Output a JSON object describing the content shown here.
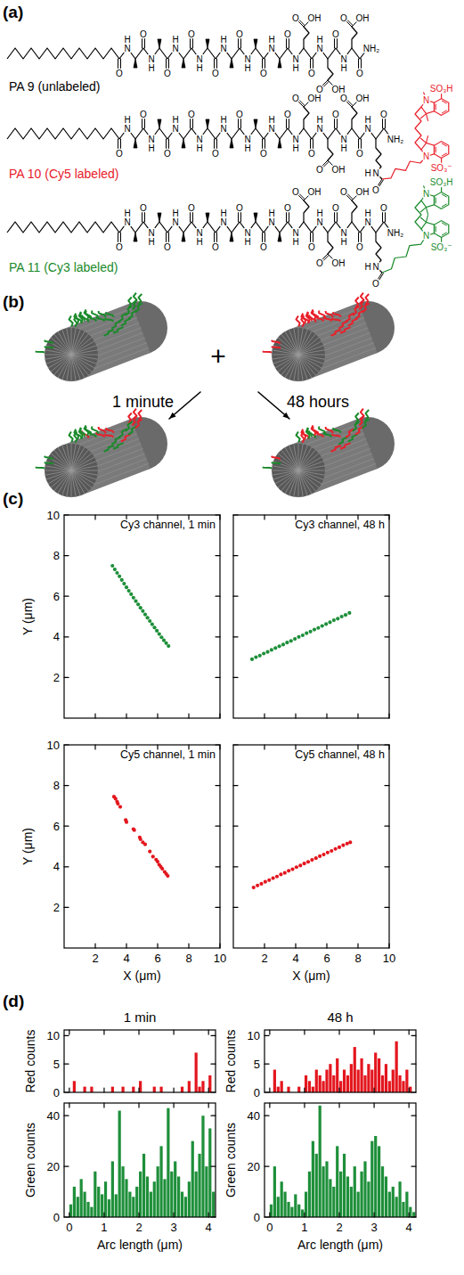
{
  "figure": {
    "panel_letters": [
      "(a)",
      "(b)",
      "(c)",
      "(d)"
    ],
    "atoms": {
      "O": "O",
      "N": "N",
      "H": "H",
      "OH": "OH",
      "NH2": "NH₂",
      "SO3H": "SO₃H",
      "SO3": "SO₃⁻"
    },
    "structures": [
      {
        "label": "PA 9 (unlabeled)",
        "color": "#000000",
        "dye": false
      },
      {
        "label": "PA 10 (Cy5 labeled)",
        "color": "#e8202a",
        "dye": true,
        "polymethine": 5
      },
      {
        "label": "PA 11 (Cy3 labeled)",
        "color": "#1a8a2a",
        "dye": true,
        "polymethine": 3
      }
    ],
    "assembly": {
      "plus": "+",
      "left_arrow": "1 minute",
      "right_arrow": "48 hours"
    }
  },
  "chart_data": [
    {
      "type": "scatter",
      "title": "Cy3 channel, 1 min",
      "ylabel": "Y (μm)",
      "color": "#1e8f3a",
      "x": [
        3.1,
        3.25,
        3.4,
        3.55,
        3.7,
        3.85,
        4.0,
        4.15,
        4.3,
        4.45,
        4.6,
        4.75,
        4.9,
        5.05,
        5.2,
        5.35,
        5.5,
        5.65,
        5.8,
        5.95,
        6.1,
        6.25,
        6.4,
        6.55,
        6.7
      ],
      "values": [
        7.5,
        7.32,
        7.15,
        6.98,
        6.8,
        6.62,
        6.44,
        6.27,
        6.1,
        5.93,
        5.76,
        5.6,
        5.43,
        5.27,
        5.1,
        4.94,
        4.78,
        4.62,
        4.46,
        4.3,
        4.14,
        3.98,
        3.83,
        3.69,
        3.55
      ],
      "xlim": [
        0,
        10
      ],
      "ylim": [
        0,
        10
      ],
      "xticks": [
        2,
        4,
        6,
        8,
        10
      ],
      "yticks": [
        2,
        4,
        6,
        8,
        10
      ],
      "tick_labels": "y"
    },
    {
      "type": "scatter",
      "title": "Cy3 channel, 48 h",
      "color": "#1e8f3a",
      "x": [
        1.2,
        1.45,
        1.7,
        1.95,
        2.2,
        2.45,
        2.7,
        2.95,
        3.2,
        3.45,
        3.7,
        3.95,
        4.2,
        4.45,
        4.7,
        4.95,
        5.2,
        5.45,
        5.7,
        5.95,
        6.2,
        6.45,
        6.7,
        6.95,
        7.2,
        7.45
      ],
      "values": [
        2.9,
        3.0,
        3.08,
        3.18,
        3.26,
        3.36,
        3.45,
        3.54,
        3.62,
        3.72,
        3.8,
        3.9,
        4.0,
        4.08,
        4.18,
        4.26,
        4.36,
        4.44,
        4.54,
        4.63,
        4.72,
        4.82,
        4.9,
        5.0,
        5.08,
        5.18
      ],
      "xlim": [
        0,
        10
      ],
      "ylim": [
        0,
        10
      ],
      "xticks": [
        2,
        4,
        6,
        8,
        10
      ],
      "yticks": [
        2,
        4,
        6,
        8,
        10
      ],
      "tick_labels": false
    },
    {
      "type": "scatter",
      "title": "Cy5 channel, 1 min",
      "ylabel": "Y (μm)",
      "xlabel": "X (μm)",
      "color": "#e3161e",
      "x": [
        3.2,
        3.3,
        3.4,
        3.45,
        3.6,
        3.95,
        4.0,
        4.45,
        4.5,
        4.85,
        4.9,
        5.05,
        5.2,
        5.5,
        5.7,
        5.9,
        6.0,
        6.1,
        6.2,
        6.3,
        6.45,
        6.55,
        6.65
      ],
      "values": [
        7.45,
        7.35,
        7.2,
        7.1,
        6.95,
        6.3,
        6.2,
        5.85,
        5.8,
        5.45,
        5.35,
        5.2,
        5.1,
        4.75,
        4.5,
        4.35,
        4.25,
        4.1,
        4.0,
        3.9,
        3.75,
        3.65,
        3.55
      ],
      "xlim": [
        0,
        10
      ],
      "ylim": [
        0,
        10
      ],
      "xticks": [
        2,
        4,
        6,
        8,
        10
      ],
      "yticks": [
        2,
        4,
        6,
        8,
        10
      ],
      "tick_labels": true
    },
    {
      "type": "scatter",
      "title": "Cy5 channel, 48 h",
      "xlabel": "X (μm)",
      "color": "#e3161e",
      "x": [
        1.3,
        1.55,
        1.8,
        2.05,
        2.3,
        2.55,
        2.8,
        3.05,
        3.3,
        3.55,
        3.8,
        4.05,
        4.3,
        4.55,
        4.8,
        5.05,
        5.3,
        5.55,
        5.8,
        6.05,
        6.3,
        6.55,
        6.8,
        7.05,
        7.3,
        7.5
      ],
      "values": [
        2.98,
        3.08,
        3.16,
        3.26,
        3.34,
        3.44,
        3.52,
        3.62,
        3.7,
        3.8,
        3.88,
        3.98,
        4.06,
        4.16,
        4.24,
        4.34,
        4.42,
        4.52,
        4.6,
        4.7,
        4.78,
        4.88,
        4.96,
        5.06,
        5.14,
        5.2
      ],
      "xlim": [
        0,
        10
      ],
      "ylim": [
        0,
        10
      ],
      "xticks": [
        2,
        4,
        6,
        8,
        10
      ],
      "yticks": [
        2,
        4,
        6,
        8,
        10
      ],
      "tick_labels": "x"
    },
    {
      "type": "histogram",
      "title": "1 min",
      "ylabel": "Red counts",
      "color": "#e3161e",
      "bins": [
        0,
        0.1,
        0.2,
        0.3,
        0.4,
        0.5,
        0.6,
        0.7,
        0.8,
        0.9,
        1,
        1.1,
        1.2,
        1.3,
        1.4,
        1.5,
        1.6,
        1.7,
        1.8,
        1.9,
        2,
        2.1,
        2.2,
        2.3,
        2.4,
        2.5,
        2.6,
        2.7,
        2.8,
        2.9,
        3,
        3.1,
        3.2,
        3.3,
        3.4,
        3.5,
        3.6,
        3.7,
        3.8,
        3.9,
        4,
        4.1,
        4.2
      ],
      "values": [
        0,
        2,
        0,
        0,
        1,
        0,
        1,
        0,
        0,
        0,
        0,
        0,
        1,
        0,
        0,
        1,
        0,
        0,
        1,
        0,
        2,
        0,
        0,
        0,
        1,
        0,
        1,
        0,
        0,
        0,
        0,
        0,
        1,
        0,
        2,
        0,
        7,
        1,
        2,
        0,
        3,
        0
      ],
      "xlim": [
        -0.15,
        4.2
      ],
      "ylim": [
        0,
        11
      ],
      "xticks": [
        0,
        1,
        2,
        3,
        4
      ],
      "yticks": [
        0,
        5,
        10
      ],
      "tick_labels": "y"
    },
    {
      "type": "histogram",
      "title": "48 h",
      "ylabel": "Red counts",
      "color": "#e3161e",
      "bins": [
        0,
        0.1,
        0.2,
        0.3,
        0.4,
        0.5,
        0.6,
        0.7,
        0.8,
        0.9,
        1,
        1.1,
        1.2,
        1.3,
        1.4,
        1.5,
        1.6,
        1.7,
        1.8,
        1.9,
        2,
        2.1,
        2.2,
        2.3,
        2.4,
        2.5,
        2.6,
        2.7,
        2.8,
        2.9,
        3,
        3.1,
        3.2,
        3.3,
        3.4,
        3.5,
        3.6,
        3.7,
        3.8,
        3.9,
        4,
        4.1,
        4.2
      ],
      "values": [
        0,
        4,
        1,
        2,
        0,
        1,
        0,
        0,
        1,
        0,
        3,
        2,
        1,
        4,
        3,
        2,
        4,
        5,
        3,
        6,
        2,
        4,
        3,
        5,
        8,
        4,
        6,
        3,
        5,
        4,
        7,
        6,
        3,
        5,
        2,
        4,
        9,
        3,
        2,
        4,
        1,
        0
      ],
      "xlim": [
        -0.15,
        4.2
      ],
      "ylim": [
        0,
        11
      ],
      "xticks": [
        0,
        1,
        2,
        3,
        4
      ],
      "yticks": [
        0,
        5,
        10
      ],
      "tick_labels": "y"
    },
    {
      "type": "histogram",
      "ylabel": "Green counts",
      "xlabel": "Arc length (μm)",
      "color": "#1e8f3a",
      "bins": [
        0,
        0.1,
        0.2,
        0.3,
        0.4,
        0.5,
        0.6,
        0.7,
        0.8,
        0.9,
        1,
        1.1,
        1.2,
        1.3,
        1.4,
        1.5,
        1.6,
        1.7,
        1.8,
        1.9,
        2,
        2.1,
        2.2,
        2.3,
        2.4,
        2.5,
        2.6,
        2.7,
        2.8,
        2.9,
        3,
        3.1,
        3.2,
        3.3,
        3.4,
        3.5,
        3.6,
        3.7,
        3.8,
        3.9,
        4,
        4.1,
        4.2
      ],
      "values": [
        5,
        12,
        8,
        15,
        10,
        6,
        4,
        18,
        12,
        9,
        14,
        7,
        22,
        9,
        42,
        20,
        15,
        10,
        8,
        12,
        18,
        25,
        16,
        10,
        14,
        20,
        28,
        15,
        43,
        18,
        22,
        16,
        10,
        8,
        14,
        30,
        18,
        25,
        40,
        20,
        35,
        10
      ],
      "xlim": [
        -0.15,
        4.2
      ],
      "ylim": [
        0,
        45
      ],
      "xticks": [
        0,
        1,
        2,
        3,
        4
      ],
      "yticks": [
        0,
        20,
        40
      ],
      "tick_labels": true
    },
    {
      "type": "histogram",
      "ylabel": "Green counts",
      "xlabel": "Arc length (μm)",
      "color": "#1e8f3a",
      "bins": [
        0,
        0.1,
        0.2,
        0.3,
        0.4,
        0.5,
        0.6,
        0.7,
        0.8,
        0.9,
        1,
        1.1,
        1.2,
        1.3,
        1.4,
        1.5,
        1.6,
        1.7,
        1.8,
        1.9,
        2,
        2.1,
        2.2,
        2.3,
        2.4,
        2.5,
        2.6,
        2.7,
        2.8,
        2.9,
        3,
        3.1,
        3.2,
        3.3,
        3.4,
        3.5,
        3.6,
        3.7,
        3.8,
        3.9,
        4,
        4.1,
        4.2
      ],
      "values": [
        5,
        20,
        8,
        14,
        10,
        6,
        4,
        9,
        5,
        3,
        10,
        18,
        30,
        25,
        44,
        20,
        22,
        15,
        12,
        28,
        18,
        25,
        16,
        12,
        20,
        10,
        18,
        22,
        14,
        30,
        32,
        28,
        20,
        16,
        10,
        12,
        8,
        14,
        6,
        10,
        4,
        2
      ],
      "xlim": [
        -0.15,
        4.2
      ],
      "ylim": [
        0,
        45
      ],
      "xticks": [
        0,
        1,
        2,
        3,
        4
      ],
      "yticks": [
        0,
        20,
        40
      ],
      "tick_labels": true
    }
  ]
}
